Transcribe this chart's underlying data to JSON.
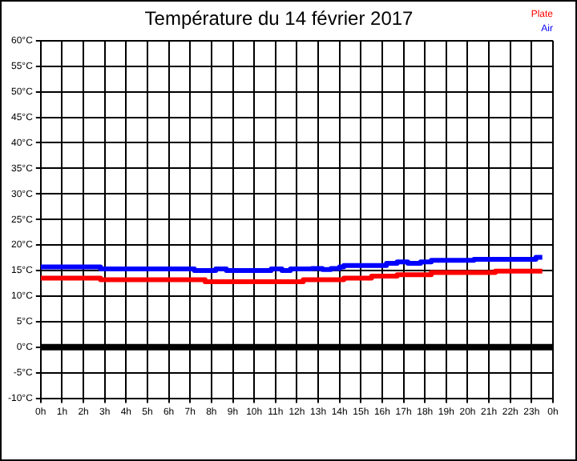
{
  "chart_data": {
    "type": "step",
    "title": "Température du 14 février 2017",
    "xlim": [
      "2017-02-14T00:00",
      "2017-02-15T00:00"
    ],
    "xticks": [
      {
        "value": "2017-02-14T00:00",
        "label": "0h"
      },
      {
        "value": "2017-02-14T01:00",
        "label": "1h"
      },
      {
        "value": "2017-02-14T02:00",
        "label": "2h"
      },
      {
        "value": "2017-02-14T03:00",
        "label": "3h"
      },
      {
        "value": "2017-02-14T04:00",
        "label": "4h"
      },
      {
        "value": "2017-02-14T05:00",
        "label": "5h"
      },
      {
        "value": "2017-02-14T06:00",
        "label": "6h"
      },
      {
        "value": "2017-02-14T07:00",
        "label": "7h"
      },
      {
        "value": "2017-02-14T08:00",
        "label": "8h"
      },
      {
        "value": "2017-02-14T09:00",
        "label": "9h"
      },
      {
        "value": "2017-02-14T10:00",
        "label": "10h"
      },
      {
        "value": "2017-02-14T11:00",
        "label": "11h"
      },
      {
        "value": "2017-02-14T12:00",
        "label": "12h"
      },
      {
        "value": "2017-02-14T13:00",
        "label": "13h"
      },
      {
        "value": "2017-02-14T14:00",
        "label": "14h"
      },
      {
        "value": "2017-02-14T15:00",
        "label": "15h"
      },
      {
        "value": "2017-02-14T16:00",
        "label": "16h"
      },
      {
        "value": "2017-02-14T17:00",
        "label": "17h"
      },
      {
        "value": "2017-02-14T18:00",
        "label": "18h"
      },
      {
        "value": "2017-02-14T19:00",
        "label": "19h"
      },
      {
        "value": "2017-02-14T20:00",
        "label": "20h"
      },
      {
        "value": "2017-02-14T21:00",
        "label": "21h"
      },
      {
        "value": "2017-02-14T22:00",
        "label": "22h"
      },
      {
        "value": "2017-02-14T23:00",
        "label": "23h"
      },
      {
        "value": "2017-02-15T00:00",
        "label": "0h"
      }
    ],
    "ylim": [
      -10,
      60
    ],
    "yticks": [
      {
        "value": -10,
        "label": "-10°C"
      },
      {
        "value": -5,
        "label": "-5°C"
      },
      {
        "value": 0,
        "label": "0°C"
      },
      {
        "value": 5,
        "label": "5°C"
      },
      {
        "value": 10,
        "label": "10°C"
      },
      {
        "value": 15,
        "label": "15°C"
      },
      {
        "value": 20,
        "label": "20°C"
      },
      {
        "value": 25,
        "label": "25°C"
      },
      {
        "value": 30,
        "label": "30°C"
      },
      {
        "value": 35,
        "label": "35°C"
      },
      {
        "value": 40,
        "label": "40°C"
      },
      {
        "value": 45,
        "label": "45°C"
      },
      {
        "value": 50,
        "label": "50°C"
      },
      {
        "value": 55,
        "label": "55°C"
      },
      {
        "value": 60,
        "label": "60°C"
      }
    ],
    "grid": true,
    "legend": "top right",
    "marker": "none",
    "ref_lines": [
      {
        "axis": "y",
        "value": 0,
        "color": "#000000"
      }
    ],
    "series": [
      {
        "name": "Plate",
        "color": "#ff0000",
        "x": [
          "2017-02-14T00:00",
          "2017-02-14T02:48",
          "2017-02-14T07:42",
          "2017-02-14T12:18",
          "2017-02-14T14:12",
          "2017-02-14T15:30",
          "2017-02-14T16:42",
          "2017-02-14T18:18",
          "2017-02-14T21:18",
          "2017-02-14T23:30"
        ],
        "values": [
          13.5,
          13.2,
          12.8,
          13.2,
          13.5,
          13.9,
          14.2,
          14.6,
          14.9,
          14.9
        ]
      },
      {
        "name": "Air",
        "color": "#0000ff",
        "x": [
          "2017-02-14T00:00",
          "2017-02-14T02:48",
          "2017-02-14T07:12",
          "2017-02-14T08:12",
          "2017-02-14T08:42",
          "2017-02-14T10:48",
          "2017-02-14T11:18",
          "2017-02-14T11:42",
          "2017-02-14T12:42",
          "2017-02-14T13:12",
          "2017-02-14T13:36",
          "2017-02-14T14:00",
          "2017-02-14T14:12",
          "2017-02-14T16:12",
          "2017-02-14T16:42",
          "2017-02-14T17:12",
          "2017-02-14T17:48",
          "2017-02-14T18:18",
          "2017-02-14T20:18",
          "2017-02-14T23:12",
          "2017-02-14T23:30"
        ],
        "values": [
          15.7,
          15.3,
          15.0,
          15.3,
          15.0,
          15.3,
          15.0,
          15.3,
          15.4,
          15.2,
          15.4,
          15.7,
          16.0,
          16.4,
          16.7,
          16.4,
          16.7,
          17.0,
          17.2,
          17.6,
          17.6
        ]
      }
    ]
  }
}
